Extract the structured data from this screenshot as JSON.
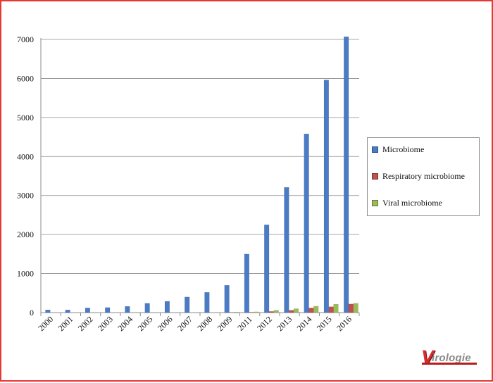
{
  "chart_data": {
    "type": "bar",
    "title": "",
    "xlabel": "",
    "ylabel": "",
    "categories": [
      "2000",
      "2001",
      "2002",
      "2003",
      "2004",
      "2005",
      "2006",
      "2007",
      "2008",
      "2009",
      "2011",
      "2012",
      "2013",
      "2014",
      "2015",
      "2016"
    ],
    "series": [
      {
        "name": "Microbiome",
        "color": "#4a7bc4",
        "values": [
          70,
          70,
          120,
          130,
          160,
          240,
          290,
          400,
          520,
          700,
          1500,
          2250,
          3210,
          4580,
          5960,
          7070
        ]
      },
      {
        "name": "Respiratory microbiome",
        "color": "#c0504d",
        "values": [
          0,
          0,
          0,
          0,
          0,
          0,
          0,
          0,
          0,
          5,
          10,
          30,
          60,
          120,
          150,
          220
        ]
      },
      {
        "name": "Viral microbiome",
        "color": "#9bbb59",
        "values": [
          0,
          0,
          0,
          0,
          0,
          0,
          0,
          0,
          0,
          15,
          20,
          60,
          100,
          165,
          215,
          240
        ]
      }
    ],
    "ylim": [
      0,
      7000
    ],
    "yticks": [
      0,
      1000,
      2000,
      3000,
      4000,
      5000,
      6000,
      7000
    ],
    "grid": true,
    "legend": "right"
  },
  "logo": {
    "initial": "V",
    "rest": "irologie"
  }
}
